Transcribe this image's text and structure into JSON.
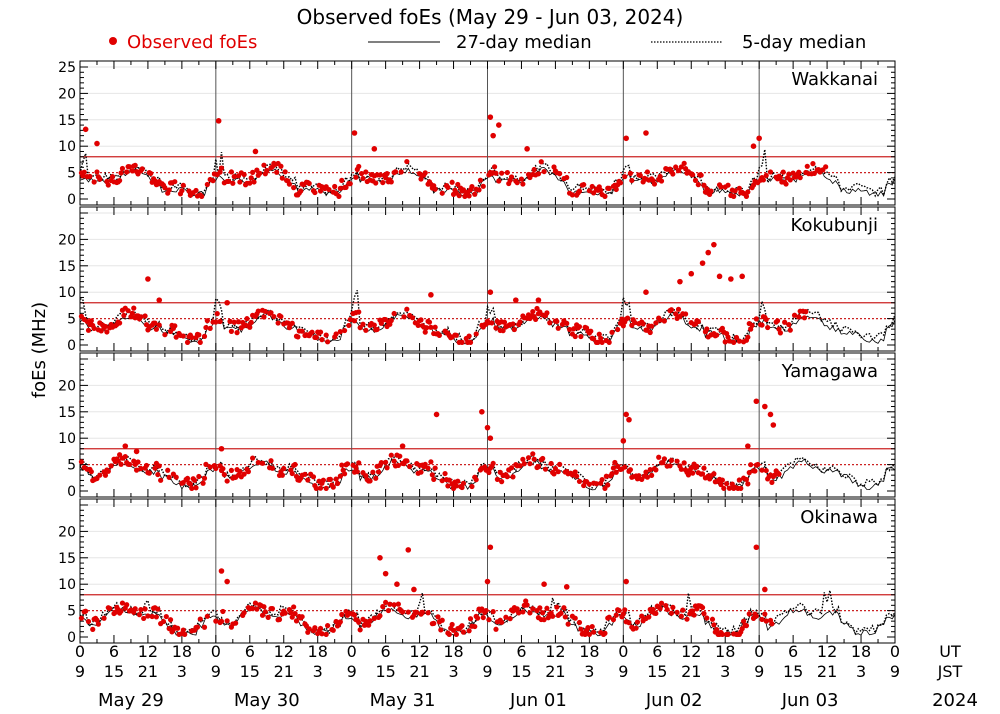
{
  "chart_data": {
    "type": "scatter",
    "title": "Observed foEs (May 29 - Jun 03, 2024)",
    "ylabel": "foEs (MHz)",
    "ylim": [
      0,
      25
    ],
    "legend": [
      {
        "label": "Observed foEs",
        "marker": "red-dot",
        "color": "#e00000"
      },
      {
        "label": "27-day median",
        "marker": "solid-line",
        "color": "#000000"
      },
      {
        "label": "5-day median",
        "marker": "dotted-line",
        "color": "#000000"
      }
    ],
    "thresholds_mhz": [
      5,
      8
    ],
    "threshold_color": "#cc2222",
    "x_hours_ut": [
      0,
      144
    ],
    "xaxis": {
      "ut_label": "UT",
      "jst_label": "JST",
      "year": "2024",
      "ut_ticks": [
        "0",
        "6",
        "12",
        "18",
        "0",
        "6",
        "12",
        "18",
        "0",
        "6",
        "12",
        "18",
        "0",
        "6",
        "12",
        "18",
        "0",
        "6",
        "12",
        "18",
        "0",
        "6",
        "12",
        "18",
        "0"
      ],
      "jst_ticks": [
        "9",
        "15",
        "21",
        "3",
        "9",
        "15",
        "21",
        "3",
        "9",
        "15",
        "21",
        "3",
        "9",
        "15",
        "21",
        "3",
        "9",
        "15",
        "21",
        "3",
        "9",
        "15",
        "21",
        "3",
        "9"
      ],
      "dates": [
        "May 29",
        "May 30",
        "May 31",
        "Jun 01",
        "Jun 02",
        "Jun 03"
      ]
    },
    "panels": [
      {
        "station": "Wakkanai",
        "yticks": [
          "0",
          "5",
          "10",
          "15",
          "20",
          "25"
        ],
        "spikes": [
          {
            "day": 0,
            "h": 1,
            "v": 13.2
          },
          {
            "day": 0,
            "h": 3,
            "v": 10.5
          },
          {
            "day": 1,
            "h": 0.5,
            "v": 14.8
          },
          {
            "day": 1,
            "h": 7,
            "v": 9
          },
          {
            "day": 2,
            "h": 0.5,
            "v": 12.5
          },
          {
            "day": 2,
            "h": 4,
            "v": 9.5
          },
          {
            "day": 3,
            "h": 0.5,
            "v": 15.5
          },
          {
            "day": 3,
            "h": 2,
            "v": 14
          },
          {
            "day": 3,
            "h": 1,
            "v": 12
          },
          {
            "day": 3,
            "h": 7,
            "v": 9.5
          },
          {
            "day": 4,
            "h": 0.5,
            "v": 11.5
          },
          {
            "day": 4,
            "h": 4,
            "v": 12.5
          },
          {
            "day": 4,
            "h": 23,
            "v": 10
          },
          {
            "day": 5,
            "h": 0,
            "v": 11.5
          }
        ],
        "obs_days": 5.5
      },
      {
        "station": "Kokubunji",
        "yticks": [
          "0",
          "5",
          "10",
          "15",
          "20"
        ],
        "spikes": [
          {
            "day": 0,
            "h": 12,
            "v": 12.5
          },
          {
            "day": 0,
            "h": 14,
            "v": 8.5
          },
          {
            "day": 1,
            "h": 2,
            "v": 8
          },
          {
            "day": 2,
            "h": 14,
            "v": 9.5
          },
          {
            "day": 3,
            "h": 0.5,
            "v": 10
          },
          {
            "day": 3,
            "h": 5,
            "v": 8.5
          },
          {
            "day": 3,
            "h": 9,
            "v": 8.5
          },
          {
            "day": 4,
            "h": 4,
            "v": 10
          },
          {
            "day": 4,
            "h": 16,
            "v": 19
          },
          {
            "day": 4,
            "h": 15,
            "v": 17.5
          },
          {
            "day": 4,
            "h": 14,
            "v": 15.5
          },
          {
            "day": 4,
            "h": 17,
            "v": 13
          },
          {
            "day": 4,
            "h": 19,
            "v": 12.5
          },
          {
            "day": 4,
            "h": 21,
            "v": 13
          },
          {
            "day": 4,
            "h": 12,
            "v": 13.5
          },
          {
            "day": 4,
            "h": 10,
            "v": 12
          }
        ],
        "obs_days": 5.35
      },
      {
        "station": "Yamagawa",
        "yticks": [
          "0",
          "5",
          "10",
          "15",
          "20"
        ],
        "spikes": [
          {
            "day": 0,
            "h": 8,
            "v": 8.5
          },
          {
            "day": 0,
            "h": 10,
            "v": 7.5
          },
          {
            "day": 1,
            "h": 1,
            "v": 8
          },
          {
            "day": 2,
            "h": 9,
            "v": 8.5
          },
          {
            "day": 2,
            "h": 15,
            "v": 14.5
          },
          {
            "day": 2,
            "h": 23,
            "v": 15
          },
          {
            "day": 3,
            "h": 0,
            "v": 12
          },
          {
            "day": 3,
            "h": 0.5,
            "v": 10
          },
          {
            "day": 4,
            "h": 0.5,
            "v": 14.5
          },
          {
            "day": 4,
            "h": 1,
            "v": 13.5
          },
          {
            "day": 4,
            "h": 0,
            "v": 9.5
          },
          {
            "day": 4,
            "h": 23.5,
            "v": 17
          },
          {
            "day": 5,
            "h": 1,
            "v": 16
          },
          {
            "day": 5,
            "h": 2,
            "v": 14.5
          },
          {
            "day": 5,
            "h": 2.5,
            "v": 12.5
          },
          {
            "day": 4,
            "h": 22,
            "v": 8.5
          }
        ],
        "obs_days": 5.15
      },
      {
        "station": "Okinawa",
        "yticks": [
          "0",
          "5",
          "10",
          "15",
          "20"
        ],
        "spikes": [
          {
            "day": 1,
            "h": 1,
            "v": 12.5
          },
          {
            "day": 1,
            "h": 2,
            "v": 10.5
          },
          {
            "day": 2,
            "h": 5,
            "v": 15
          },
          {
            "day": 2,
            "h": 6,
            "v": 12
          },
          {
            "day": 2,
            "h": 10,
            "v": 16.5
          },
          {
            "day": 2,
            "h": 8,
            "v": 10
          },
          {
            "day": 2,
            "h": 11,
            "v": 9
          },
          {
            "day": 3,
            "h": 0.5,
            "v": 17
          },
          {
            "day": 3,
            "h": 0,
            "v": 10.5
          },
          {
            "day": 3,
            "h": 10,
            "v": 10
          },
          {
            "day": 3,
            "h": 14,
            "v": 9.5
          },
          {
            "day": 4,
            "h": 0.5,
            "v": 10.5
          },
          {
            "day": 4,
            "h": 23.5,
            "v": 17
          },
          {
            "day": 5,
            "h": 1,
            "v": 9
          }
        ],
        "obs_days": 5.1
      }
    ]
  }
}
